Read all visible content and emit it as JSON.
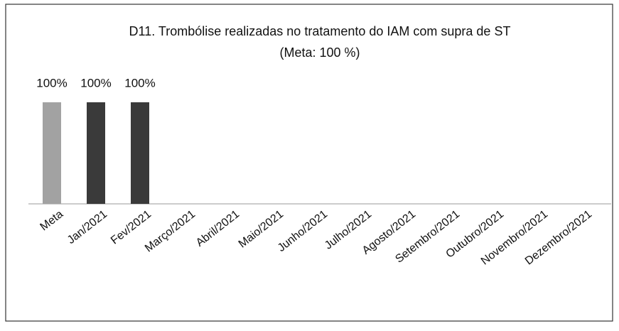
{
  "chart_data": {
    "type": "bar",
    "title": "D11. Trombólise realizadas no tratamento do IAM com supra de ST",
    "subtitle": "(Meta:  100 %)",
    "categories": [
      "Meta",
      "Jan/2021",
      "Fev/2021",
      "Março/2021",
      "Abril/2021",
      "Maio/2021",
      "Junho/2021",
      "Julho/2021",
      "Agosto/2021",
      "Setembro/2021",
      "Outubro/2021",
      "Novembro/2021",
      "Dezembro/2021"
    ],
    "values": [
      100,
      100,
      100,
      null,
      null,
      null,
      null,
      null,
      null,
      null,
      null,
      null,
      null
    ],
    "value_labels": [
      "100%",
      "100%",
      "100%",
      null,
      null,
      null,
      null,
      null,
      null,
      null,
      null,
      null,
      null
    ],
    "colors": [
      "#a2a2a2",
      "#3a3a3a",
      "#3a3a3a",
      null,
      null,
      null,
      null,
      null,
      null,
      null,
      null,
      null,
      null
    ]
  }
}
